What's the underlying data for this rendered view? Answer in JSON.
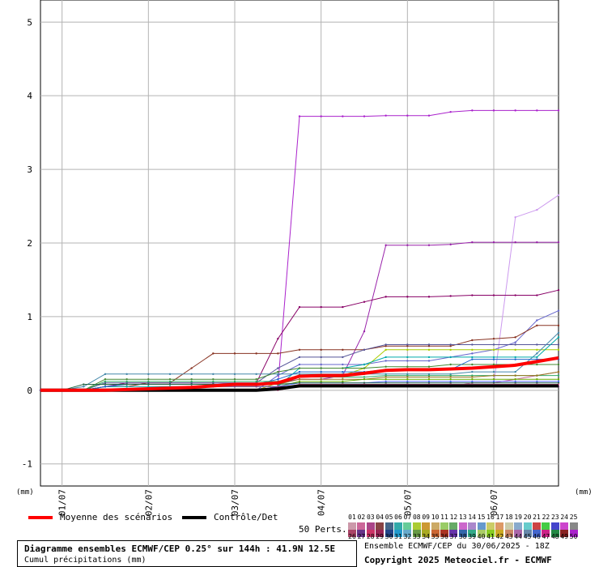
{
  "chart_data": {
    "type": "line",
    "ylim": [
      -1.3,
      5.3
    ],
    "yticks": [
      "-1",
      "0",
      "1",
      "2",
      "3",
      "4",
      "5"
    ],
    "ytick_values": [
      -1,
      0,
      1,
      2,
      3,
      4,
      5
    ],
    "xlim": [
      0,
      24
    ],
    "xticks": [
      {
        "label": "01/07",
        "x": 1
      },
      {
        "label": "02/07",
        "x": 5
      },
      {
        "label": "03/07",
        "x": 9
      },
      {
        "label": "04/07",
        "x": 13
      },
      {
        "label": "05/07",
        "x": 17
      },
      {
        "label": "06/07",
        "x": 21
      }
    ],
    "unit_left": "(mm)",
    "unit_right": "(mm)",
    "x_steps": [
      0,
      1,
      2,
      3,
      4,
      5,
      6,
      7,
      8,
      9,
      10,
      11,
      12,
      13,
      14,
      15,
      16,
      17,
      18,
      19,
      20,
      21,
      22,
      23,
      24
    ],
    "mean": {
      "name": "Moyenne des scénarios",
      "color": "#ff0000",
      "values": [
        0,
        0,
        0,
        0,
        0.01,
        0.02,
        0.03,
        0.04,
        0.06,
        0.08,
        0.08,
        0.1,
        0.19,
        0.2,
        0.2,
        0.23,
        0.27,
        0.28,
        0.28,
        0.29,
        0.3,
        0.32,
        0.34,
        0.39,
        0.44
      ]
    },
    "control": {
      "name": "Contrôle/Det",
      "color": "#000000",
      "values": [
        0,
        0,
        0,
        0,
        0,
        0,
        0,
        0,
        0,
        0,
        0,
        0.02,
        0.06,
        0.06,
        0.06,
        0.06,
        0.06,
        0.06,
        0.06,
        0.06,
        0.06,
        0.06,
        0.06,
        0.06,
        0.06
      ]
    },
    "members": [
      {
        "color": "#aa22cc",
        "values": [
          0,
          0,
          0,
          0,
          0,
          0,
          0,
          0,
          0,
          0,
          0,
          0.05,
          3.72,
          3.72,
          3.72,
          3.72,
          3.73,
          3.73,
          3.73,
          3.78,
          3.8,
          3.8,
          3.8,
          3.8,
          3.8
        ]
      },
      {
        "color": "#cc99ee",
        "values": [
          0,
          0,
          0,
          0,
          0,
          0,
          0,
          0,
          0,
          0,
          0,
          0.02,
          0.05,
          0.05,
          0.05,
          0.05,
          0.05,
          0.05,
          0.05,
          0.05,
          0.05,
          0.08,
          2.35,
          2.45,
          2.65
        ]
      },
      {
        "color": "#9922aa",
        "values": [
          0,
          0,
          0,
          0,
          0,
          0,
          0,
          0,
          0,
          0,
          0,
          0.1,
          0.15,
          0.15,
          0.2,
          0.8,
          1.97,
          1.97,
          1.97,
          1.98,
          2.01,
          2.01,
          2.01,
          2.01,
          2.01
        ]
      },
      {
        "color": "#880066",
        "values": [
          0,
          0,
          0,
          0.05,
          0.1,
          0.1,
          0.1,
          0.1,
          0.1,
          0.1,
          0.1,
          0.7,
          1.13,
          1.13,
          1.13,
          1.2,
          1.27,
          1.27,
          1.27,
          1.28,
          1.29,
          1.29,
          1.29,
          1.29,
          1.36
        ]
      },
      {
        "color": "#6666cc",
        "values": [
          0,
          0,
          0,
          0,
          0,
          0,
          0,
          0,
          0,
          0,
          0,
          0.2,
          0.35,
          0.35,
          0.35,
          0.35,
          0.4,
          0.4,
          0.4,
          0.45,
          0.5,
          0.55,
          0.65,
          0.95,
          1.08
        ]
      },
      {
        "color": "#883322",
        "values": [
          0,
          0,
          0,
          0.05,
          0.05,
          0.1,
          0.1,
          0.3,
          0.5,
          0.5,
          0.5,
          0.5,
          0.55,
          0.55,
          0.55,
          0.55,
          0.6,
          0.6,
          0.6,
          0.6,
          0.68,
          0.7,
          0.72,
          0.88,
          0.88
        ]
      },
      {
        "color": "#555599",
        "values": [
          0,
          0,
          0,
          0.1,
          0.1,
          0.1,
          0.1,
          0.1,
          0.1,
          0.1,
          0.1,
          0.3,
          0.45,
          0.45,
          0.45,
          0.55,
          0.62,
          0.62,
          0.62,
          0.62,
          0.62,
          0.62,
          0.62,
          0.62,
          0.62
        ]
      },
      {
        "color": "#aacc00",
        "values": [
          0,
          0,
          0,
          0,
          0,
          0,
          0,
          0,
          0,
          0,
          0,
          0.1,
          0.2,
          0.2,
          0.2,
          0.3,
          0.55,
          0.55,
          0.55,
          0.55,
          0.55,
          0.55,
          0.55,
          0.55,
          0.55
        ]
      },
      {
        "color": "#4488aa",
        "values": [
          0,
          0,
          0.05,
          0.22,
          0.22,
          0.22,
          0.22,
          0.22,
          0.22,
          0.22,
          0.22,
          0.22,
          0.22,
          0.22,
          0.22,
          0.22,
          0.22,
          0.22,
          0.22,
          0.22,
          0.25,
          0.25,
          0.25,
          0.5,
          0.78
        ]
      },
      {
        "color": "#00aaaa",
        "values": [
          0,
          0,
          0,
          0.05,
          0.05,
          0.05,
          0.05,
          0.05,
          0.05,
          0.05,
          0.05,
          0.05,
          0.3,
          0.3,
          0.3,
          0.35,
          0.45,
          0.45,
          0.45,
          0.45,
          0.45,
          0.45,
          0.45,
          0.45,
          0.72
        ]
      },
      {
        "color": "#448833",
        "values": [
          0,
          0,
          0,
          0.15,
          0.15,
          0.15,
          0.15,
          0.15,
          0.15,
          0.15,
          0.15,
          0.25,
          0.3,
          0.3,
          0.3,
          0.3,
          0.32,
          0.32,
          0.32,
          0.35,
          0.35,
          0.35,
          0.35,
          0.35,
          0.35
        ]
      },
      {
        "color": "#2266cc",
        "values": [
          0,
          0,
          0,
          0.05,
          0.08,
          0.08,
          0.08,
          0.08,
          0.08,
          0.08,
          0.08,
          0.15,
          0.25,
          0.25,
          0.25,
          0.25,
          0.28,
          0.28,
          0.28,
          0.28,
          0.42,
          0.42,
          0.42,
          0.42,
          0.42
        ]
      },
      {
        "color": "#cc6699",
        "values": [
          0,
          0,
          0,
          0,
          0,
          0,
          0,
          0,
          0,
          0,
          0,
          0,
          0.05,
          0.05,
          0.05,
          0.05,
          0.05,
          0.05,
          0.05,
          0.05,
          0.1,
          0.1,
          0.15,
          0.2,
          0.25
        ]
      },
      {
        "color": "#33aa66",
        "values": [
          0,
          0,
          0,
          0.12,
          0.12,
          0.12,
          0.12,
          0.12,
          0.12,
          0.12,
          0.12,
          0.12,
          0.18,
          0.18,
          0.18,
          0.18,
          0.2,
          0.2,
          0.2,
          0.2,
          0.2,
          0.2,
          0.2,
          0.2,
          0.2
        ]
      },
      {
        "color": "#997722",
        "values": [
          0,
          0,
          0,
          0,
          0,
          0,
          0,
          0.05,
          0.08,
          0.08,
          0.08,
          0.08,
          0.15,
          0.15,
          0.15,
          0.15,
          0.18,
          0.18,
          0.18,
          0.18,
          0.18,
          0.2,
          0.2,
          0.2,
          0.25
        ]
      },
      {
        "color": "#66aa00",
        "values": [
          0,
          0,
          0,
          0,
          0,
          0,
          0,
          0,
          0,
          0,
          0,
          0.05,
          0.12,
          0.12,
          0.12,
          0.15,
          0.15,
          0.15,
          0.15,
          0.15,
          0.15,
          0.15,
          0.15,
          0.15,
          0.15
        ]
      },
      {
        "color": "#5566ff",
        "values": [
          0,
          0,
          0,
          0,
          0,
          0,
          0,
          0,
          0,
          0,
          0,
          0.05,
          0.1,
          0.1,
          0.1,
          0.1,
          0.12,
          0.12,
          0.12,
          0.12,
          0.12,
          0.12,
          0.12,
          0.12,
          0.12
        ]
      },
      {
        "color": "#226644",
        "values": [
          0,
          0,
          0.08,
          0.08,
          0.08,
          0.08,
          0.08,
          0.08,
          0.08,
          0.08,
          0.08,
          0.08,
          0.1,
          0.1,
          0.1,
          0.1,
          0.1,
          0.1,
          0.1,
          0.1,
          0.1,
          0.1,
          0.1,
          0.1,
          0.1
        ]
      },
      {
        "color": "#ff66aa",
        "values": [
          0,
          0,
          0,
          0,
          0,
          0,
          0,
          0,
          0,
          0,
          0,
          0.02,
          0.08,
          0.08,
          0.08,
          0.08,
          0.08,
          0.08,
          0.08,
          0.08,
          0.08,
          0.08,
          0.08,
          0.08,
          0.08
        ]
      },
      {
        "color": "#884488",
        "values": [
          0,
          0,
          0,
          0,
          0,
          0.02,
          0.02,
          0.05,
          0.05,
          0.05,
          0.05,
          0.05,
          0.05,
          0.05,
          0.05,
          0.05,
          0.05,
          0.05,
          0.05,
          0.05,
          0.05,
          0.05,
          0.05,
          0.05,
          0.05
        ]
      }
    ]
  },
  "legend": {
    "mean_label": "Moyenne des scénarios",
    "control_label": "Contrôle/Det",
    "perts_label": "50 Perts.",
    "top_numbers": [
      "01",
      "02",
      "03",
      "04",
      "05",
      "06",
      "07",
      "08",
      "09",
      "10",
      "11",
      "12",
      "13",
      "14",
      "15",
      "16",
      "17",
      "18",
      "19",
      "20",
      "21",
      "22",
      "23",
      "24",
      "25"
    ],
    "bottom_numbers": [
      "26",
      "27",
      "28",
      "29",
      "30",
      "31",
      "32",
      "33",
      "34",
      "35",
      "36",
      "37",
      "38",
      "39",
      "40",
      "41",
      "42",
      "43",
      "44",
      "45",
      "46",
      "47",
      "48",
      "49",
      "50"
    ],
    "top_colors": [
      "#cc99aa",
      "#cc6699",
      "#aa4488",
      "#884444",
      "#446688",
      "#33aaaa",
      "#66cc99",
      "#aacc33",
      "#cc9933",
      "#ccaa66",
      "#99cc66",
      "#66aa66",
      "#cc66cc",
      "#aa88cc",
      "#6699cc",
      "#cccc66",
      "#dd9966",
      "#ccccaa",
      "#88aacc",
      "#66cccc",
      "#cc4444",
      "#44cc44",
      "#4444cc",
      "#cc44cc",
      "#888888"
    ],
    "bottom_colors": [
      "#aa4466",
      "#663388",
      "#cc3366",
      "#992255",
      "#224488",
      "#2299cc",
      "#66aacc",
      "#669944",
      "#aaaa22",
      "#cc6633",
      "#aa3322",
      "#6633aa",
      "#3366aa",
      "#33aa88",
      "#aacc66",
      "#88cc22",
      "#ccaa22",
      "#cc8866",
      "#aa66aa",
      "#6688aa",
      "#4466cc",
      "#cc2288",
      "#228844",
      "#882222",
      "#aa22cc"
    ]
  },
  "info_box": {
    "title": "Diagramme ensembles ECMWF/CEP 0.25° sur 144h : 41.9N 12.5E",
    "subtitle": "Cumul précipitations (mm)"
  },
  "run_info": "Ensemble ECMWF/CEP du 30/06/2025 - 18Z",
  "copyright": "Copyright 2025 Meteociel.fr - ECMWF"
}
